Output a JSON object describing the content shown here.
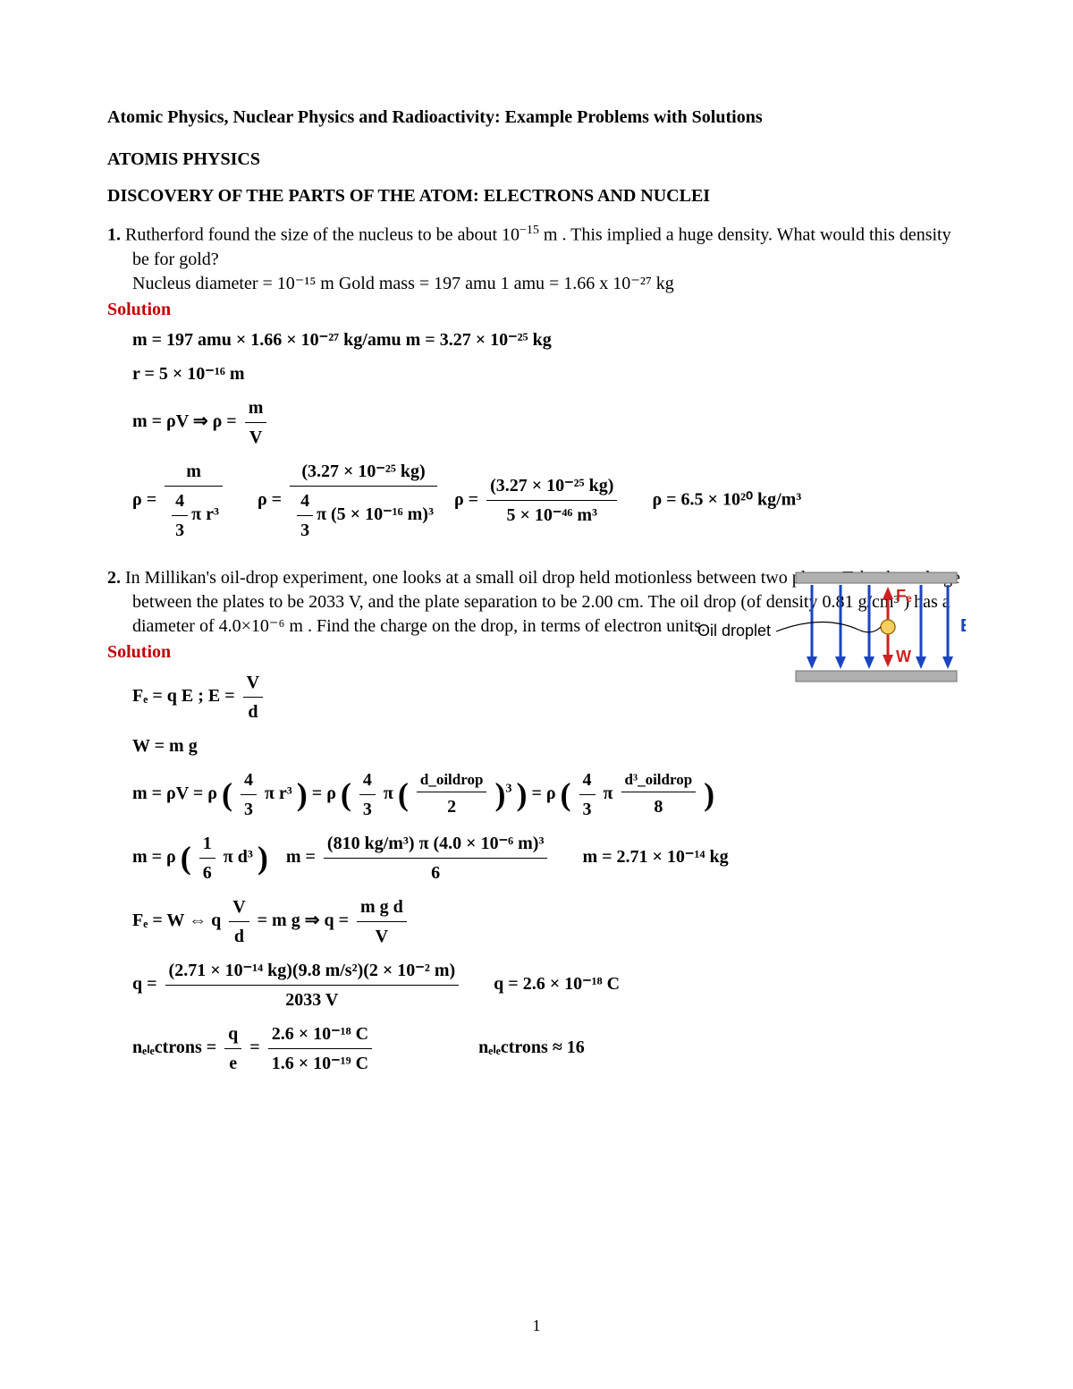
{
  "title": "Atomic Physics, Nuclear Physics and Radioactivity: Example Problems with Solutions",
  "heading1": "ATOMIS PHYSICS",
  "heading2": "DISCOVERY OF THE PARTS OF THE ATOM: ELECTRONS AND NUCLEI",
  "solution_label": "Solution",
  "page_number": "1",
  "p1": {
    "num": "1.",
    "text_a": "Rutherford found the size of the nucleus to be about 10",
    "text_a_exp": "−15",
    "text_b": " m . This implied a huge density. What would this density be for gold?",
    "given": "Nucleus diameter = 10⁻¹⁵ m     Gold mass = 197 amu        1 amu = 1.66 x 10⁻²⁷ kg",
    "l1": "m = 197 amu × 1.66 × 10⁻²⁷ kg/amu     m = 3.27 × 10⁻²⁵ kg",
    "l2": "r = 5 × 10⁻¹⁶ m",
    "l3_lhs": "m = ρV ⇒ ρ =",
    "l3_frac_top": "m",
    "l3_frac_bot": "V",
    "l4_a": "ρ =",
    "l4_f1_top": "m",
    "l4_f1_bot_top": "4",
    "l4_f1_bot_bot": "3",
    "l4_f1_bot_tail": "π r³",
    "l4_b": "ρ =",
    "l4_f2_top": "(3.27 × 10⁻²⁵ kg)",
    "l4_f2_bot_top": "4",
    "l4_f2_bot_bot": "3",
    "l4_f2_bot_tail": "π (5 × 10⁻¹⁶ m)³",
    "l4_c": "ρ =",
    "l4_f3_top": "(3.27 × 10⁻²⁵ kg)",
    "l4_f3_bot": "5 × 10⁻⁴⁶ m³",
    "l4_ans": "ρ = 6.5 × 10²⁰ kg/m³"
  },
  "p2": {
    "num": "2.",
    "text": "In Millikan's oil-drop experiment, one looks at a small oil drop held motionless between two plates. Take the voltage between the plates to be 2033 V, and the plate separation to be 2.00 cm. The oil drop (of density 0.81 g/cm³ ) has a diameter of 4.0×10⁻⁶ m . Find the charge on the drop, in terms of electron units.",
    "l1a": "Fₑ = q E ;   E =",
    "l1_top": "V",
    "l1_bot": "d",
    "l2": "W = m g",
    "l3_lead": "m = ρV = ρ",
    "l3_p1_top": "4",
    "l3_p1_bot": "3",
    "l3_p1_tail": "π r³",
    "l3_mid1": "= ρ",
    "l3_p2_top": "4",
    "l3_p2_bot": "3",
    "l3_p2_tail": "π",
    "l3_p2_inner_top": "d_oildrop",
    "l3_p2_inner_bot": "2",
    "l3_p2_exp": "3",
    "l3_mid2": "= ρ",
    "l3_p3_top": "4",
    "l3_p3_bot": "3",
    "l3_p3_tail": "π",
    "l3_p3_inner_top": "d³_oildrop",
    "l3_p3_inner_bot": "8",
    "l4_lead": "m = ρ",
    "l4_p1_top": "1",
    "l4_p1_bot": "6",
    "l4_p1_tail": "π d³",
    "l4_mid": "m =",
    "l4_f_top": "(810 kg/m³) π (4.0 × 10⁻⁶ m)³",
    "l4_f_bot": "6",
    "l4_ans": "m = 2.71 × 10⁻¹⁴ kg",
    "l5_a": "Fₑ = W  ⇔   q",
    "l5_f1_top": "V",
    "l5_f1_bot": "d",
    "l5_b": "= m g     ⇒ q =",
    "l5_f2_top": "m g d",
    "l5_f2_bot": "V",
    "l6_a": "q =",
    "l6_f_top": "(2.71 × 10⁻¹⁴ kg)(9.8 m/s²)(2 × 10⁻² m)",
    "l6_f_bot": "2033 V",
    "l6_ans": "q = 2.6 × 10⁻¹⁸ C",
    "l7_a": "nₑₗₑctrons =",
    "l7_f1_top": "q",
    "l7_f1_bot": "e",
    "l7_mid": "=",
    "l7_f2_top": "2.6 × 10⁻¹⁸ C",
    "l7_f2_bot": "1.6 × 10⁻¹⁹ C",
    "l7_ans": "nₑₗₑctrons ≈ 16"
  },
  "diagram": {
    "label_oil": "Oil droplet",
    "label_FE": "Fₑ",
    "label_W": "W",
    "label_E": "E",
    "plate_color": "#b0b0b0",
    "plate_stroke": "#707070",
    "arrow_E_color": "#1a44c2",
    "arrow_FE_color": "#d02020",
    "arrow_W_color": "#d02020",
    "drop_fill": "#f5d060",
    "drop_stroke": "#a07010",
    "n_field_arrows": 5
  }
}
